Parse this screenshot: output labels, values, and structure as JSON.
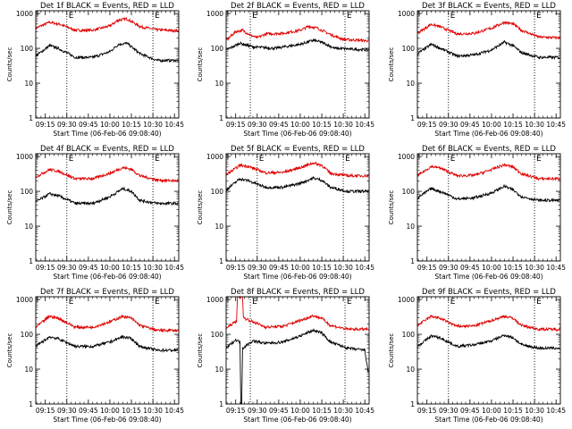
{
  "shared": {
    "x_tick_labels": [
      "09:15",
      "09:30",
      "09:45",
      "10:00",
      "10:15",
      "10:30",
      "10:45"
    ],
    "x_ticks_hours": [
      9.25,
      9.5,
      9.75,
      10.0,
      10.25,
      10.5,
      10.75
    ],
    "y_tick_labels": [
      "1",
      "10",
      "100",
      "1000"
    ],
    "y_ticks_values": [
      1,
      10,
      100,
      1000
    ],
    "ylabel": "Counts/sec",
    "xlabel": "Start Time (06-Feb-06 09:08:40)",
    "marker_labels": [
      "E",
      "E"
    ],
    "colors": {
      "events": "#000000",
      "lld": "#e00000",
      "axes": "#000000",
      "marker": "#000000"
    }
  },
  "chart_data": [
    {
      "type": "line",
      "title": "Det 1f BLACK = Events, RED = LLD",
      "xlim": [
        9.139,
        10.8
      ],
      "ylim": [
        1,
        1200
      ],
      "ylog": true,
      "markers_x": [
        9.5,
        10.5
      ],
      "series": [
        {
          "key": "lld",
          "points": [
            [
              9.14,
              380
            ],
            [
              9.3,
              560
            ],
            [
              9.42,
              490
            ],
            [
              9.6,
              330
            ],
            [
              9.8,
              330
            ],
            [
              10.0,
              440
            ],
            [
              10.1,
              650
            ],
            [
              10.2,
              700
            ],
            [
              10.35,
              420
            ],
            [
              10.55,
              340
            ],
            [
              10.79,
              320
            ]
          ]
        },
        {
          "key": "events",
          "points": [
            [
              9.14,
              60
            ],
            [
              9.3,
              120
            ],
            [
              9.4,
              100
            ],
            [
              9.6,
              55
            ],
            [
              9.8,
              55
            ],
            [
              10.0,
              80
            ],
            [
              10.1,
              130
            ],
            [
              10.2,
              140
            ],
            [
              10.35,
              70
            ],
            [
              10.55,
              45
            ],
            [
              10.79,
              45
            ]
          ]
        }
      ]
    },
    {
      "type": "line",
      "title": "Det 2f BLACK = Events, RED = LLD",
      "xlim": [
        9.139,
        10.8
      ],
      "ylim": [
        1,
        1200
      ],
      "ylog": true,
      "markers_x": [
        9.42,
        10.52
      ],
      "series": [
        {
          "key": "lld",
          "points": [
            [
              9.14,
              170
            ],
            [
              9.25,
              300
            ],
            [
              9.33,
              330
            ],
            [
              9.42,
              240
            ],
            [
              9.5,
              200
            ],
            [
              9.6,
              260
            ],
            [
              9.8,
              270
            ],
            [
              10.0,
              330
            ],
            [
              10.1,
              430
            ],
            [
              10.2,
              380
            ],
            [
              10.35,
              250
            ],
            [
              10.5,
              180
            ],
            [
              10.79,
              165
            ]
          ]
        },
        {
          "key": "events",
          "points": [
            [
              9.14,
              90
            ],
            [
              9.3,
              140
            ],
            [
              9.45,
              110
            ],
            [
              9.7,
              100
            ],
            [
              10.0,
              130
            ],
            [
              10.15,
              170
            ],
            [
              10.25,
              150
            ],
            [
              10.4,
              100
            ],
            [
              10.79,
              90
            ]
          ]
        }
      ]
    },
    {
      "type": "line",
      "title": "Det 3f BLACK = Events, RED = LLD",
      "xlim": [
        9.139,
        10.8
      ],
      "ylim": [
        1,
        1200
      ],
      "ylog": true,
      "markers_x": [
        9.5,
        10.5
      ],
      "series": [
        {
          "key": "lld",
          "points": [
            [
              9.14,
              270
            ],
            [
              9.3,
              490
            ],
            [
              9.4,
              420
            ],
            [
              9.6,
              260
            ],
            [
              9.8,
              270
            ],
            [
              10.0,
              380
            ],
            [
              10.15,
              560
            ],
            [
              10.25,
              500
            ],
            [
              10.35,
              330
            ],
            [
              10.55,
              210
            ],
            [
              10.79,
              200
            ]
          ]
        },
        {
          "key": "events",
          "points": [
            [
              9.14,
              70
            ],
            [
              9.3,
              130
            ],
            [
              9.45,
              90
            ],
            [
              9.6,
              60
            ],
            [
              9.8,
              65
            ],
            [
              10.0,
              90
            ],
            [
              10.15,
              150
            ],
            [
              10.25,
              120
            ],
            [
              10.35,
              75
            ],
            [
              10.55,
              55
            ],
            [
              10.79,
              55
            ]
          ]
        }
      ]
    },
    {
      "type": "line",
      "title": "Det 4f BLACK = Events, RED = LLD",
      "xlim": [
        9.139,
        10.8
      ],
      "ylim": [
        1,
        1200
      ],
      "ylog": true,
      "markers_x": [
        9.5,
        10.5
      ],
      "series": [
        {
          "key": "lld",
          "points": [
            [
              9.14,
              260
            ],
            [
              9.3,
              420
            ],
            [
              9.4,
              380
            ],
            [
              9.6,
              230
            ],
            [
              9.8,
              230
            ],
            [
              10.0,
              330
            ],
            [
              10.15,
              480
            ],
            [
              10.25,
              430
            ],
            [
              10.35,
              280
            ],
            [
              10.55,
              210
            ],
            [
              10.79,
              200
            ]
          ]
        },
        {
          "key": "events",
          "points": [
            [
              9.14,
              50
            ],
            [
              9.3,
              85
            ],
            [
              9.4,
              75
            ],
            [
              9.6,
              45
            ],
            [
              9.8,
              45
            ],
            [
              10.0,
              70
            ],
            [
              10.15,
              120
            ],
            [
              10.25,
              100
            ],
            [
              10.35,
              55
            ],
            [
              10.55,
              45
            ],
            [
              10.79,
              45
            ]
          ]
        }
      ]
    },
    {
      "type": "line",
      "title": "Det 5f BLACK = Events, RED = LLD",
      "xlim": [
        9.139,
        10.8
      ],
      "ylim": [
        1,
        1200
      ],
      "ylog": true,
      "markers_x": [
        9.5,
        10.5
      ],
      "series": [
        {
          "key": "lld",
          "points": [
            [
              9.14,
              300
            ],
            [
              9.3,
              560
            ],
            [
              9.4,
              520
            ],
            [
              9.6,
              340
            ],
            [
              9.8,
              350
            ],
            [
              10.0,
              480
            ],
            [
              10.15,
              650
            ],
            [
              10.25,
              560
            ],
            [
              10.35,
              330
            ],
            [
              10.55,
              280
            ],
            [
              10.79,
              280
            ]
          ]
        },
        {
          "key": "events",
          "points": [
            [
              9.14,
              110
            ],
            [
              9.3,
              230
            ],
            [
              9.4,
              200
            ],
            [
              9.6,
              130
            ],
            [
              9.8,
              130
            ],
            [
              10.0,
              170
            ],
            [
              10.15,
              240
            ],
            [
              10.25,
              210
            ],
            [
              10.35,
              130
            ],
            [
              10.55,
              100
            ],
            [
              10.79,
              100
            ]
          ]
        }
      ]
    },
    {
      "type": "line",
      "title": "Det 6f BLACK = Events, RED = LLD",
      "xlim": [
        9.139,
        10.8
      ],
      "ylim": [
        1,
        1200
      ],
      "ylog": true,
      "markers_x": [
        9.5,
        10.5
      ],
      "series": [
        {
          "key": "lld",
          "points": [
            [
              9.14,
              280
            ],
            [
              9.3,
              520
            ],
            [
              9.4,
              470
            ],
            [
              9.6,
              280
            ],
            [
              9.8,
              290
            ],
            [
              10.0,
              420
            ],
            [
              10.15,
              580
            ],
            [
              10.25,
              500
            ],
            [
              10.35,
              320
            ],
            [
              10.55,
              230
            ],
            [
              10.79,
              230
            ]
          ]
        },
        {
          "key": "events",
          "points": [
            [
              9.14,
              65
            ],
            [
              9.3,
              120
            ],
            [
              9.45,
              90
            ],
            [
              9.6,
              60
            ],
            [
              9.8,
              65
            ],
            [
              10.0,
              90
            ],
            [
              10.15,
              140
            ],
            [
              10.25,
              110
            ],
            [
              10.35,
              70
            ],
            [
              10.55,
              55
            ],
            [
              10.79,
              55
            ]
          ]
        }
      ]
    },
    {
      "type": "line",
      "title": "Det 7f BLACK = Events, RED = LLD",
      "xlim": [
        9.139,
        10.8
      ],
      "ylim": [
        1,
        1200
      ],
      "ylog": true,
      "markers_x": [
        9.5,
        10.5
      ],
      "series": [
        {
          "key": "lld",
          "points": [
            [
              9.14,
              160
            ],
            [
              9.3,
              330
            ],
            [
              9.4,
              290
            ],
            [
              9.6,
              160
            ],
            [
              9.8,
              160
            ],
            [
              10.0,
              230
            ],
            [
              10.15,
              330
            ],
            [
              10.25,
              290
            ],
            [
              10.35,
              180
            ],
            [
              10.55,
              130
            ],
            [
              10.79,
              130
            ]
          ]
        },
        {
          "key": "events",
          "points": [
            [
              9.14,
              45
            ],
            [
              9.3,
              85
            ],
            [
              9.4,
              75
            ],
            [
              9.6,
              45
            ],
            [
              9.8,
              45
            ],
            [
              10.0,
              60
            ],
            [
              10.15,
              85
            ],
            [
              10.25,
              75
            ],
            [
              10.35,
              45
            ],
            [
              10.55,
              35
            ],
            [
              10.79,
              35
            ]
          ]
        }
      ]
    },
    {
      "type": "line",
      "title": "Det 8f BLACK = Events, RED = LLD",
      "xlim": [
        9.139,
        10.8
      ],
      "ylim": [
        1,
        1200
      ],
      "ylog": true,
      "markers_x": [
        9.42,
        10.52
      ],
      "series": [
        {
          "key": "lld",
          "points": [
            [
              9.14,
              150
            ],
            [
              9.26,
              240
            ],
            [
              9.27,
              1200
            ],
            [
              9.33,
              1200
            ],
            [
              9.34,
              300
            ],
            [
              9.45,
              230
            ],
            [
              9.6,
              160
            ],
            [
              9.8,
              170
            ],
            [
              10.0,
              250
            ],
            [
              10.15,
              340
            ],
            [
              10.25,
              290
            ],
            [
              10.35,
              180
            ],
            [
              10.55,
              140
            ],
            [
              10.79,
              140
            ]
          ]
        },
        {
          "key": "events",
          "points": [
            [
              9.14,
              40
            ],
            [
              9.25,
              70
            ],
            [
              9.3,
              60
            ],
            [
              9.31,
              1
            ],
            [
              9.32,
              1
            ],
            [
              9.33,
              40
            ],
            [
              9.45,
              65
            ],
            [
              9.6,
              55
            ],
            [
              9.8,
              60
            ],
            [
              10.0,
              90
            ],
            [
              10.15,
              130
            ],
            [
              10.25,
              110
            ],
            [
              10.35,
              60
            ],
            [
              10.55,
              40
            ],
            [
              10.75,
              35
            ],
            [
              10.79,
              8
            ]
          ]
        }
      ]
    },
    {
      "type": "line",
      "title": "Det 9f BLACK = Events, RED = LLD",
      "xlim": [
        9.139,
        10.8
      ],
      "ylim": [
        1,
        1200
      ],
      "ylog": true,
      "markers_x": [
        9.5,
        10.5
      ],
      "series": [
        {
          "key": "lld",
          "points": [
            [
              9.14,
              180
            ],
            [
              9.3,
              330
            ],
            [
              9.4,
              290
            ],
            [
              9.6,
              170
            ],
            [
              9.8,
              175
            ],
            [
              10.0,
              250
            ],
            [
              10.15,
              330
            ],
            [
              10.25,
              290
            ],
            [
              10.35,
              180
            ],
            [
              10.55,
              140
            ],
            [
              10.79,
              140
            ]
          ]
        },
        {
          "key": "events",
          "points": [
            [
              9.14,
              45
            ],
            [
              9.3,
              90
            ],
            [
              9.4,
              80
            ],
            [
              9.6,
              45
            ],
            [
              9.8,
              50
            ],
            [
              10.0,
              65
            ],
            [
              10.15,
              95
            ],
            [
              10.25,
              80
            ],
            [
              10.35,
              50
            ],
            [
              10.55,
              40
            ],
            [
              10.79,
              40
            ]
          ]
        }
      ]
    }
  ]
}
